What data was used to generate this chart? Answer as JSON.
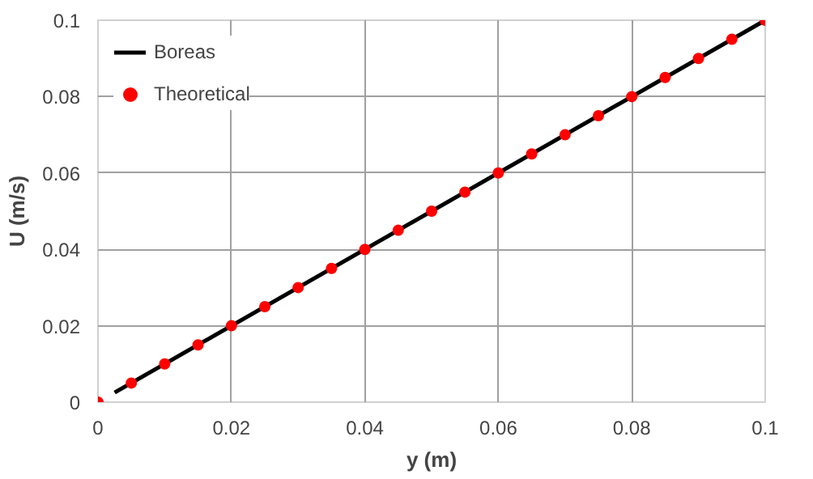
{
  "chart_data": {
    "type": "scatter",
    "xlabel": "y (m)",
    "ylabel": "U (m/s)",
    "xlim": [
      0,
      0.1
    ],
    "ylim": [
      0,
      0.1
    ],
    "xticks": [
      0,
      0.02,
      0.04,
      0.06,
      0.08,
      0.1
    ],
    "yticks": [
      0,
      0.02,
      0.04,
      0.06,
      0.08,
      0.1
    ],
    "grid": true,
    "legend": "top left",
    "series": [
      {
        "name": "Boreas",
        "type": "line",
        "color": "#000000",
        "marker": "none",
        "x": [
          0.0025,
          0.1
        ],
        "values": [
          0.0025,
          0.1
        ]
      },
      {
        "name": "Theoretical",
        "color": "#ff0000",
        "marker": "circle",
        "x": [
          0,
          0.005,
          0.01,
          0.015,
          0.02,
          0.025,
          0.03,
          0.035,
          0.04,
          0.045,
          0.05,
          0.055,
          0.06,
          0.065,
          0.07,
          0.075,
          0.08,
          0.085,
          0.09,
          0.095,
          0.1
        ],
        "values": [
          0,
          0.005,
          0.01,
          0.015,
          0.02,
          0.025,
          0.03,
          0.035,
          0.04,
          0.045,
          0.05,
          0.055,
          0.06,
          0.065,
          0.07,
          0.075,
          0.08,
          0.085,
          0.09,
          0.095,
          0.1
        ]
      }
    ]
  }
}
